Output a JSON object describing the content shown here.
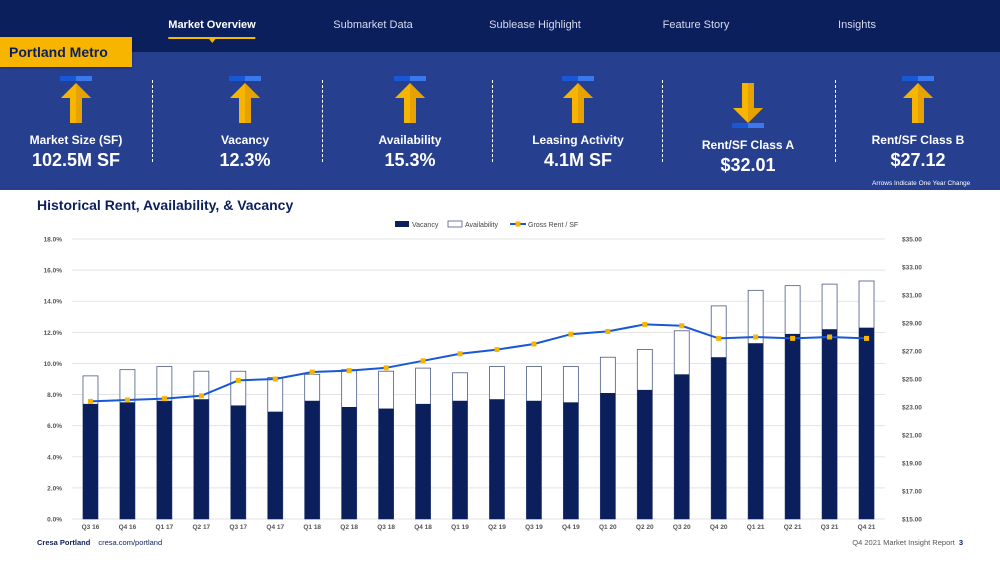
{
  "nav": {
    "items": [
      {
        "label": "Market Overview",
        "active": true
      },
      {
        "label": "Submarket Data",
        "active": false
      },
      {
        "label": "Sublease Highlight",
        "active": false
      },
      {
        "label": "Feature Story",
        "active": false
      },
      {
        "label": "Insights",
        "active": false
      }
    ]
  },
  "region": "Portland Metro",
  "stats": [
    {
      "label": "Market Size (SF)",
      "value": "102.5M SF",
      "direction": "up"
    },
    {
      "label": "Vacancy",
      "value": "12.3%",
      "direction": "up"
    },
    {
      "label": "Availability",
      "value": "15.3%",
      "direction": "up"
    },
    {
      "label": "Leasing Activity",
      "value": "4.1M SF",
      "direction": "up"
    },
    {
      "label": "Rent/SF Class A",
      "value": "$32.01",
      "direction": "down"
    },
    {
      "label": "Rent/SF Class B",
      "value": "$27.12",
      "direction": "up"
    }
  ],
  "arrow_note": "Arrows Indicate One Year Change",
  "colors": {
    "navy": "#0b1f5c",
    "band": "#263f8e",
    "accent": "#f7b500",
    "line": "#1857d6"
  },
  "chart_title": "Historical Rent, Availability, & Vacancy",
  "chart_data": {
    "type": "bar",
    "categories": [
      "Q3 16",
      "Q4 16",
      "Q1 17",
      "Q2 17",
      "Q3 17",
      "Q4 17",
      "Q1 18",
      "Q2 18",
      "Q3 18",
      "Q4 18",
      "Q1 19",
      "Q2 19",
      "Q3 19",
      "Q4 19",
      "Q1 20",
      "Q2 20",
      "Q3 20",
      "Q4 20",
      "Q1 21",
      "Q2 21",
      "Q3 21",
      "Q4 21"
    ],
    "series": [
      {
        "name": "Vacancy",
        "type": "bar",
        "axis": "left",
        "values": [
          7.4,
          7.5,
          7.6,
          7.7,
          7.3,
          6.9,
          7.6,
          7.2,
          7.1,
          7.4,
          7.6,
          7.7,
          7.6,
          7.5,
          8.1,
          8.3,
          9.3,
          10.4,
          11.3,
          11.9,
          12.2,
          12.3
        ]
      },
      {
        "name": "Availability",
        "type": "bar",
        "axis": "left",
        "values": [
          9.2,
          9.6,
          9.8,
          9.5,
          9.5,
          9.1,
          9.3,
          9.6,
          9.5,
          9.7,
          9.4,
          9.8,
          9.8,
          9.8,
          10.4,
          10.9,
          12.1,
          13.7,
          14.7,
          15.0,
          15.1,
          15.3
        ]
      },
      {
        "name": "Gross Rent / SF",
        "type": "line",
        "axis": "right",
        "values": [
          23.4,
          23.5,
          23.6,
          23.8,
          24.9,
          25.0,
          25.5,
          25.6,
          25.8,
          26.3,
          26.8,
          27.1,
          27.5,
          28.2,
          28.4,
          28.9,
          28.8,
          27.9,
          28.0,
          27.9,
          28.0,
          27.9
        ]
      }
    ],
    "left_axis": {
      "ylim": [
        0,
        18
      ],
      "ticks": [
        "0.0%",
        "2.0%",
        "4.0%",
        "6.0%",
        "8.0%",
        "10.0%",
        "12.0%",
        "14.0%",
        "16.0%",
        "18.0%"
      ]
    },
    "right_axis": {
      "ylim": [
        15,
        35
      ],
      "ticks": [
        "$15.00",
        "$17.00",
        "$19.00",
        "$21.00",
        "$23.00",
        "$25.00",
        "$27.00",
        "$29.00",
        "$31.00",
        "$33.00",
        "$35.00"
      ]
    },
    "grid": true,
    "legend": "top-center"
  },
  "footer": {
    "brand": "Cresa Portland",
    "url": "cresa.com/portland",
    "report": "Q4 2021 Market Insight Report",
    "page": "3"
  }
}
